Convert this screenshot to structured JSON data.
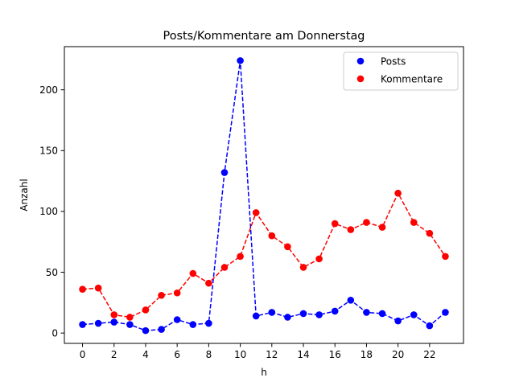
{
  "chart_data": {
    "type": "line",
    "title": "Posts/Kommentare am Donnerstag",
    "xlabel": "h",
    "ylabel": "Anzahl",
    "xlim": [
      -1.15,
      24.15
    ],
    "ylim": [
      -8.5,
      235.5
    ],
    "xticks": [
      0,
      2,
      4,
      6,
      8,
      10,
      12,
      14,
      16,
      18,
      20,
      22
    ],
    "yticks": [
      0,
      50,
      100,
      150,
      200
    ],
    "grid": false,
    "legend_position": "top-right",
    "x": [
      0,
      1,
      2,
      3,
      4,
      5,
      6,
      7,
      8,
      9,
      10,
      11,
      12,
      13,
      14,
      15,
      16,
      17,
      18,
      19,
      20,
      21,
      22,
      23
    ],
    "series": [
      {
        "name": "Posts",
        "color": "#0000ff",
        "line_style": "dashed",
        "marker": "circle",
        "values": [
          7,
          8,
          9,
          7,
          2,
          3,
          11,
          7,
          8,
          132,
          224,
          14,
          17,
          13,
          16,
          15,
          18,
          27,
          17,
          16,
          10,
          15,
          6,
          17
        ]
      },
      {
        "name": "Kommentare",
        "color": "#ff0000",
        "line_style": "dashed",
        "marker": "circle",
        "values": [
          36,
          37,
          15,
          13,
          19,
          31,
          33,
          49,
          41,
          54,
          63,
          99,
          80,
          71,
          54,
          61,
          90,
          85,
          91,
          87,
          115,
          91,
          82,
          63
        ]
      }
    ]
  }
}
